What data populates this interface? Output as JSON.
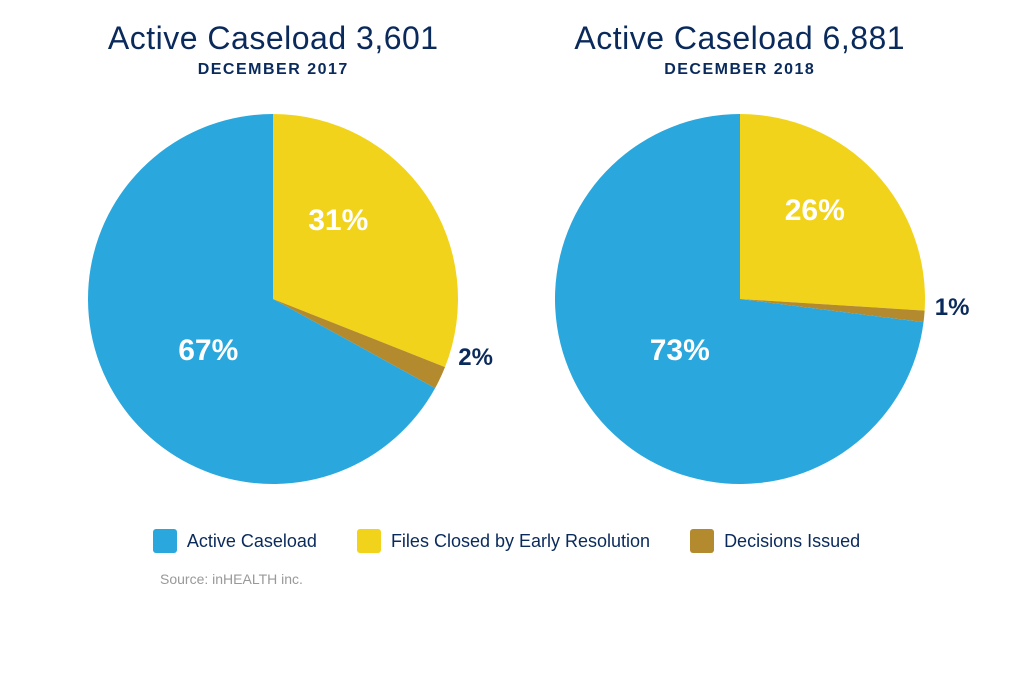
{
  "colors": {
    "title": "#0a2a5c",
    "slice_active": "#2aa7dd",
    "slice_closed": "#f2d31b",
    "slice_decisions": "#b38a2d",
    "label_on_pie": "#ffffff",
    "label_outside": "#0a2a5c",
    "legend_text": "#0a2a5c",
    "source_text": "#999999",
    "background": "#ffffff"
  },
  "charts": [
    {
      "title": "Active Caseload 3,601",
      "subtitle": "DECEMBER 2017",
      "slices": [
        {
          "key": "active",
          "value": 67,
          "label": "67%",
          "label_inside": true
        },
        {
          "key": "closed",
          "value": 31,
          "label": "31%",
          "label_inside": true
        },
        {
          "key": "decisions",
          "value": 2,
          "label": "2%",
          "label_inside": false
        }
      ]
    },
    {
      "title": "Active Caseload 6,881",
      "subtitle": "DECEMBER 2018",
      "slices": [
        {
          "key": "active",
          "value": 73,
          "label": "73%",
          "label_inside": true
        },
        {
          "key": "closed",
          "value": 26,
          "label": "26%",
          "label_inside": true
        },
        {
          "key": "decisions",
          "value": 1,
          "label": "1%",
          "label_inside": false
        }
      ]
    }
  ],
  "legend": [
    {
      "key": "active",
      "label": "Active Caseload"
    },
    {
      "key": "closed",
      "label": "Files Closed by Early Resolution"
    },
    {
      "key": "decisions",
      "label": "Decisions Issued"
    }
  ],
  "source": "Source: inHEALTH inc.",
  "pie": {
    "radius": 185,
    "start_angle_deg": -90,
    "order": [
      "closed",
      "decisions",
      "active"
    ]
  },
  "typography": {
    "title_fontsize": 32,
    "title_weight": 300,
    "subtitle_fontsize": 16,
    "subtitle_weight": 700,
    "pie_label_fontsize": 30,
    "pie_small_label_fontsize": 24,
    "legend_fontsize": 18,
    "source_fontsize": 14
  }
}
